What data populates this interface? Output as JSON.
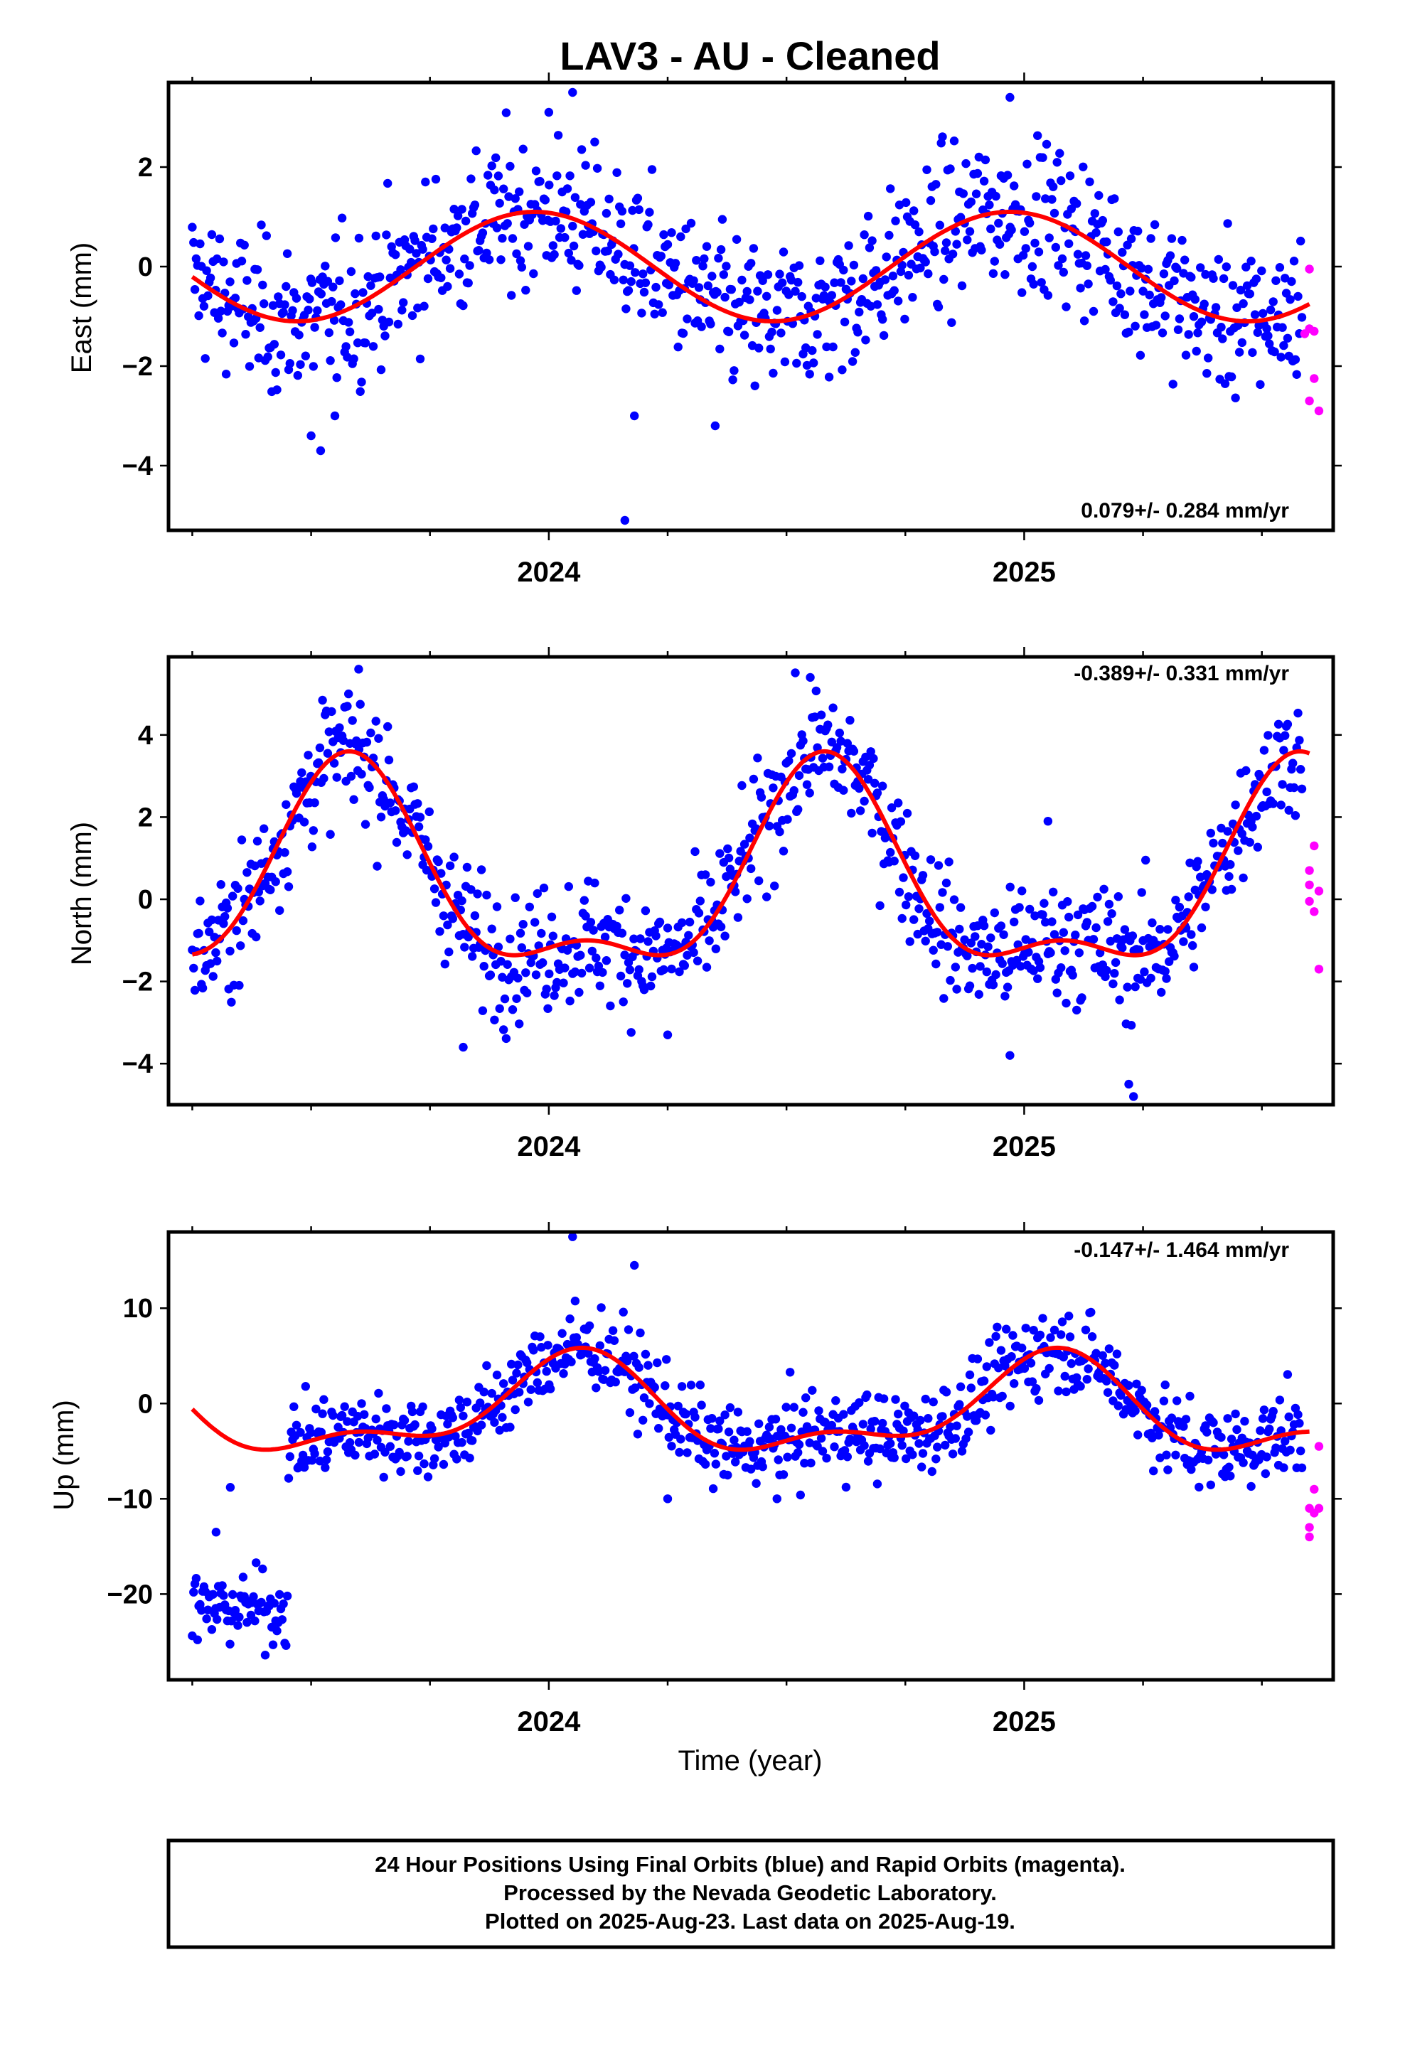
{
  "chart_data": {
    "title": "LAV3  - AU - Cleaned",
    "type": "scatter",
    "xlabel": "Time (year)",
    "xlim": [
      2023.2,
      2025.65
    ],
    "x_ticks": [
      2024,
      2025
    ],
    "x_minor_ticks": [
      2023.25,
      2023.5,
      2023.75,
      2024.25,
      2024.5,
      2024.75,
      2025.25,
      2025.5
    ],
    "legend": "Final Orbits (blue) and Rapid Orbits (magenta); red line = model fit",
    "colors": {
      "final": "#0000ff",
      "rapid": "#ff00ff",
      "fit": "#ff0000"
    },
    "panels": [
      {
        "name": "east",
        "ylabel": "East (mm)",
        "ylim": [
          -5.3,
          3.7
        ],
        "y_ticks": [
          -4,
          -2,
          0,
          2
        ],
        "y_tick_labels": [
          "−4",
          "−2",
          "0",
          "2"
        ],
        "rate_text": "0.079+/- 0.284 mm/yr",
        "rate_position": "bottom-right",
        "fit": {
          "mean": 0.0,
          "annual_amp": 1.1,
          "annual_peak": 2023.97,
          "semi_amp": 0.0,
          "semi_peak": 2024.0,
          "noise": 0.75
        },
        "outliers": [
          [
            2024.16,
            -5.1
          ],
          [
            2024.18,
            -3.0
          ],
          [
            2024.35,
            -3.2
          ],
          [
            2023.52,
            -3.7
          ],
          [
            2023.5,
            -3.4
          ],
          [
            2023.55,
            -3.0
          ],
          [
            2024.0,
            3.1
          ],
          [
            2024.05,
            3.5
          ],
          [
            2024.97,
            3.4
          ]
        ],
        "rapid": [
          [
            2025.6,
            -0.05
          ],
          [
            2025.59,
            -1.35
          ],
          [
            2025.6,
            -1.25
          ],
          [
            2025.61,
            -1.3
          ],
          [
            2025.61,
            -2.25
          ],
          [
            2025.6,
            -2.7
          ],
          [
            2025.62,
            -2.9
          ]
        ]
      },
      {
        "name": "north",
        "ylabel": "North (mm)",
        "ylim": [
          -5.0,
          5.9
        ],
        "y_ticks": [
          -4,
          -2,
          0,
          2,
          4
        ],
        "y_tick_labels": [
          "−4",
          "−2",
          "0",
          "2",
          "4"
        ],
        "rate_text": "-0.389+/- 0.331 mm/yr",
        "rate_position": "top-right",
        "fit": {
          "mean": 0.3,
          "annual_amp": 2.3,
          "annual_peak": 2023.58,
          "semi_amp": 1.0,
          "semi_peak": 2024.08,
          "noise": 0.75
        },
        "outliers": [
          [
            2023.6,
            5.6
          ],
          [
            2024.55,
            5.4
          ],
          [
            2025.22,
            -4.5
          ],
          [
            2025.23,
            -4.8
          ],
          [
            2023.82,
            -3.6
          ],
          [
            2024.25,
            -3.3
          ],
          [
            2024.97,
            -3.8
          ],
          [
            2025.05,
            1.9
          ]
        ],
        "rapid": [
          [
            2025.6,
            0.7
          ],
          [
            2025.61,
            1.3
          ],
          [
            2025.6,
            -0.05
          ],
          [
            2025.6,
            0.35
          ],
          [
            2025.61,
            -0.3
          ],
          [
            2025.62,
            0.2
          ],
          [
            2025.62,
            -1.7
          ]
        ]
      },
      {
        "name": "up",
        "ylabel": "Up (mm)",
        "ylim": [
          -29,
          18
        ],
        "y_ticks": [
          -20,
          -10,
          0,
          10
        ],
        "y_tick_labels": [
          "−20",
          "−10",
          "0",
          "10"
        ],
        "rate_text": "-0.147+/- 1.464 mm/yr",
        "rate_position": "top-right",
        "fit": {
          "mean": -0.8,
          "annual_amp": 4.5,
          "annual_peak": 2024.05,
          "semi_amp": 2.2,
          "semi_peak": 2024.08,
          "noise": 2.2
        },
        "offset_segment": {
          "x_from": 2023.2,
          "x_to": 2023.45,
          "mean": -21.5,
          "spread": 3.0
        },
        "outliers": [
          [
            2024.05,
            17.5
          ],
          [
            2024.18,
            14.5
          ],
          [
            2023.33,
            -8.8
          ],
          [
            2023.3,
            -13.5
          ],
          [
            2024.25,
            -10.0
          ],
          [
            2024.48,
            -10.0
          ]
        ],
        "rapid": [
          [
            2025.6,
            -11.0
          ],
          [
            2025.61,
            -9.0
          ],
          [
            2025.62,
            -4.5
          ],
          [
            2025.62,
            -11.0
          ],
          [
            2025.6,
            -13.0
          ],
          [
            2025.6,
            -14.0
          ],
          [
            2025.61,
            -11.5
          ]
        ]
      }
    ]
  },
  "footer": {
    "line1": "24 Hour Positions Using Final Orbits (blue) and Rapid Orbits (magenta).",
    "line2": "Processed by the Nevada Geodetic Laboratory.",
    "line3": "Plotted on 2025-Aug-23. Last data on 2025-Aug-19."
  }
}
